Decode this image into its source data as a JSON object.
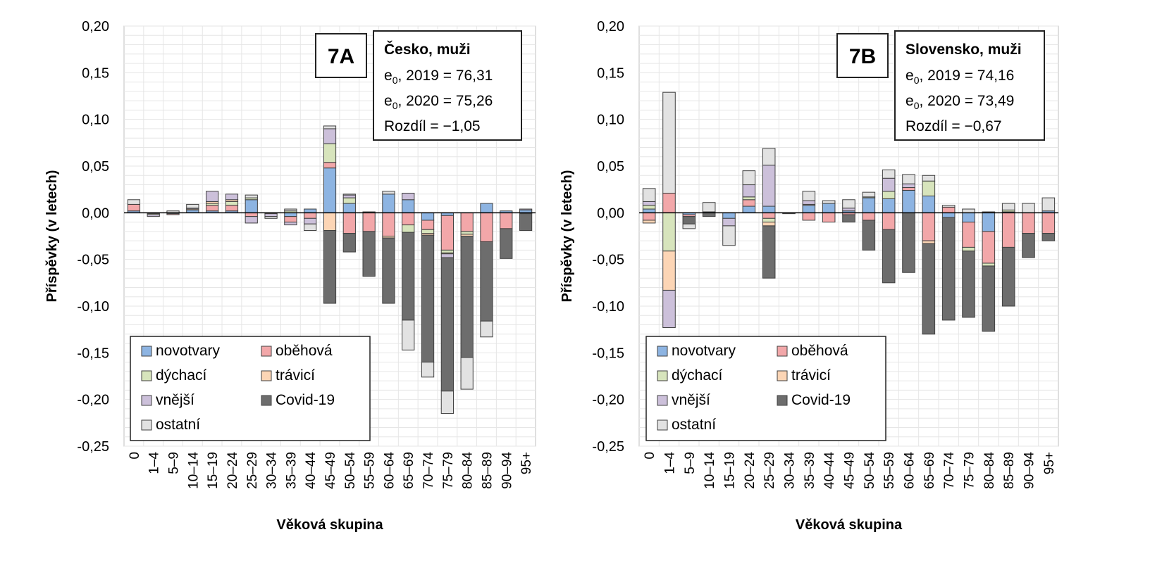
{
  "y_axis_title": "Příspěvky (v letech)",
  "x_axis_title": "Věková skupina",
  "chart_data": [
    {
      "type": "bar",
      "stacked": true,
      "panel_label": "7A",
      "info": {
        "title": "Česko, muži",
        "line1_prefix": "e",
        "line1_sub": "0",
        "line1_rest": ", 2019 = 76,31",
        "line2_prefix": "e",
        "line2_sub": "0",
        "line2_rest": ", 2020 = 75,26",
        "line3": "Rozdíl = −1,05"
      },
      "xlabel": "Věková skupina",
      "ylabel": "Příspěvky (v letech)",
      "ylim": [
        -0.25,
        0.2
      ],
      "yticks": [
        "0,20",
        "0,15",
        "0,10",
        "0,05",
        "0,00",
        "-0,05",
        "-0,10",
        "-0,15",
        "-0,20",
        "-0,25"
      ],
      "grid": true,
      "legend_position": "bottom-left",
      "categories": [
        "0",
        "1–4",
        "5–9",
        "10–14",
        "15–19",
        "20–24",
        "25–29",
        "30–34",
        "35–39",
        "40–44",
        "45–49",
        "50–54",
        "55–59",
        "60–64",
        "65–69",
        "70–74",
        "75–79",
        "80–84",
        "85–89",
        "90–94",
        "95+"
      ],
      "series": [
        {
          "name": "novotvary",
          "color": "#8db4e2",
          "values": [
            0.002,
            0,
            -0.001,
            0.003,
            0.002,
            0.002,
            0.014,
            0,
            -0.004,
            0.004,
            0.048,
            0.01,
            0,
            0.02,
            0.014,
            -0.008,
            -0.003,
            0,
            0.01,
            0.002,
            0.003
          ]
        },
        {
          "name": "oběhová",
          "color": "#f2a7a9",
          "values": [
            0.007,
            -0.001,
            -0.001,
            0,
            0.006,
            0.006,
            -0.004,
            -0.001,
            -0.006,
            -0.006,
            0.006,
            -0.022,
            -0.02,
            -0.025,
            -0.013,
            -0.01,
            -0.037,
            -0.02,
            -0.031,
            -0.017,
            0
          ]
        },
        {
          "name": "dýchací",
          "color": "#d7e4bc",
          "values": [
            0,
            -0.001,
            0,
            0,
            0.002,
            0.004,
            0.002,
            0,
            0.002,
            0,
            0.02,
            0.006,
            0,
            0,
            -0.008,
            -0.004,
            -0.003,
            -0.003,
            0,
            0,
            0
          ]
        },
        {
          "name": "trávicí",
          "color": "#fcd5b5",
          "values": [
            0,
            0,
            0,
            0.001,
            0.002,
            0.002,
            0,
            0,
            0,
            0,
            -0.019,
            0,
            0,
            -0.002,
            0,
            -0.002,
            -0.001,
            -0.002,
            0,
            0,
            -0.001
          ]
        },
        {
          "name": "vnější",
          "color": "#ccc0da",
          "values": [
            0,
            -0.002,
            0,
            0.001,
            0.011,
            0.006,
            -0.007,
            -0.003,
            -0.003,
            -0.006,
            0.016,
            0.003,
            0,
            0,
            0.007,
            0,
            -0.004,
            0,
            0,
            0,
            0.001
          ]
        },
        {
          "name": "Covid-19",
          "color": "#6d6d6d",
          "values": [
            0,
            0,
            0,
            0,
            0,
            0,
            0,
            0,
            0,
            0,
            -0.078,
            -0.02,
            -0.048,
            -0.07,
            -0.094,
            -0.136,
            -0.143,
            -0.13,
            -0.085,
            -0.032,
            -0.018
          ]
        },
        {
          "name": "ostatní",
          "color": "#e2e2e2",
          "values": [
            0.005,
            0,
            0.002,
            0.004,
            0,
            0,
            0.003,
            -0.002,
            0.002,
            -0.007,
            0.003,
            0.001,
            0.001,
            0.003,
            -0.032,
            -0.016,
            -0.024,
            -0.034,
            -0.017,
            0,
            0
          ]
        }
      ]
    },
    {
      "type": "bar",
      "stacked": true,
      "panel_label": "7B",
      "info": {
        "title": "Slovensko, muži",
        "line1_prefix": "e",
        "line1_sub": "0",
        "line1_rest": ", 2019 = 74,16",
        "line2_prefix": "e",
        "line2_sub": "0",
        "line2_rest": ", 2020 = 73,49",
        "line3": "Rozdíl = −0,67"
      },
      "xlabel": "Věková skupina",
      "ylabel": "Příspěvky (v letech)",
      "ylim": [
        -0.25,
        0.2
      ],
      "yticks": [
        "0,20",
        "0,15",
        "0,10",
        "0,05",
        "0,00",
        "-0,05",
        "-0,10",
        "-0,15",
        "-0,20",
        "-0,25"
      ],
      "grid": true,
      "legend_position": "bottom-left",
      "categories": [
        "0",
        "1–4",
        "5–9",
        "10–14",
        "15–19",
        "20–24",
        "25–29",
        "30–34",
        "35–39",
        "40–44",
        "45–49",
        "50–54",
        "55–59",
        "60–64",
        "65–69",
        "70–74",
        "75–79",
        "80–84",
        "85–89",
        "90–94",
        "95+"
      ],
      "series": [
        {
          "name": "novotvary",
          "color": "#8db4e2",
          "values": [
            0.004,
            0,
            -0.002,
            0.001,
            -0.006,
            0.007,
            0.007,
            0,
            0.008,
            0.01,
            0.002,
            0.016,
            0.015,
            0.024,
            0.018,
            -0.005,
            -0.01,
            -0.02,
            0.001,
            0,
            0.002
          ]
        },
        {
          "name": "oběhová",
          "color": "#f2a7a9",
          "values": [
            -0.008,
            0.021,
            -0.002,
            0,
            0,
            0.007,
            -0.006,
            0,
            -0.008,
            -0.01,
            -0.002,
            -0.008,
            -0.018,
            0.003,
            -0.03,
            0.006,
            -0.027,
            -0.034,
            -0.037,
            -0.022,
            -0.022
          ]
        },
        {
          "name": "dýchací",
          "color": "#d7e4bc",
          "values": [
            0.004,
            -0.041,
            0,
            0,
            0,
            0.003,
            -0.004,
            0,
            0,
            0,
            0,
            0.001,
            0.008,
            0,
            0.016,
            0,
            -0.004,
            -0.003,
            0.002,
            0,
            0
          ]
        },
        {
          "name": "trávicí",
          "color": "#fcd5b5",
          "values": [
            -0.003,
            -0.042,
            0,
            0,
            0,
            0,
            -0.004,
            0,
            0.001,
            0,
            0,
            0,
            0,
            0,
            -0.003,
            0,
            0,
            0,
            0,
            0,
            0
          ]
        },
        {
          "name": "vnější",
          "color": "#ccc0da",
          "values": [
            0.004,
            -0.04,
            0,
            0,
            -0.008,
            0.013,
            0.044,
            0,
            0.004,
            0,
            0.003,
            0,
            0.014,
            0.004,
            0,
            0,
            0,
            0,
            0,
            0,
            0
          ]
        },
        {
          "name": "Covid-19",
          "color": "#6d6d6d",
          "values": [
            0,
            0,
            -0.008,
            -0.004,
            0,
            0,
            -0.056,
            -0.001,
            0,
            0,
            -0.008,
            -0.032,
            -0.057,
            -0.064,
            -0.097,
            -0.11,
            -0.071,
            -0.07,
            -0.063,
            -0.026,
            -0.008
          ]
        },
        {
          "name": "ostatní",
          "color": "#e2e2e2",
          "values": [
            0.014,
            0.108,
            -0.005,
            0.01,
            -0.021,
            0.015,
            0.018,
            0,
            0.01,
            0.003,
            0.009,
            0.005,
            0.009,
            0.01,
            0.006,
            0.002,
            0.004,
            0.001,
            0.007,
            0.01,
            0.014
          ]
        }
      ]
    }
  ]
}
